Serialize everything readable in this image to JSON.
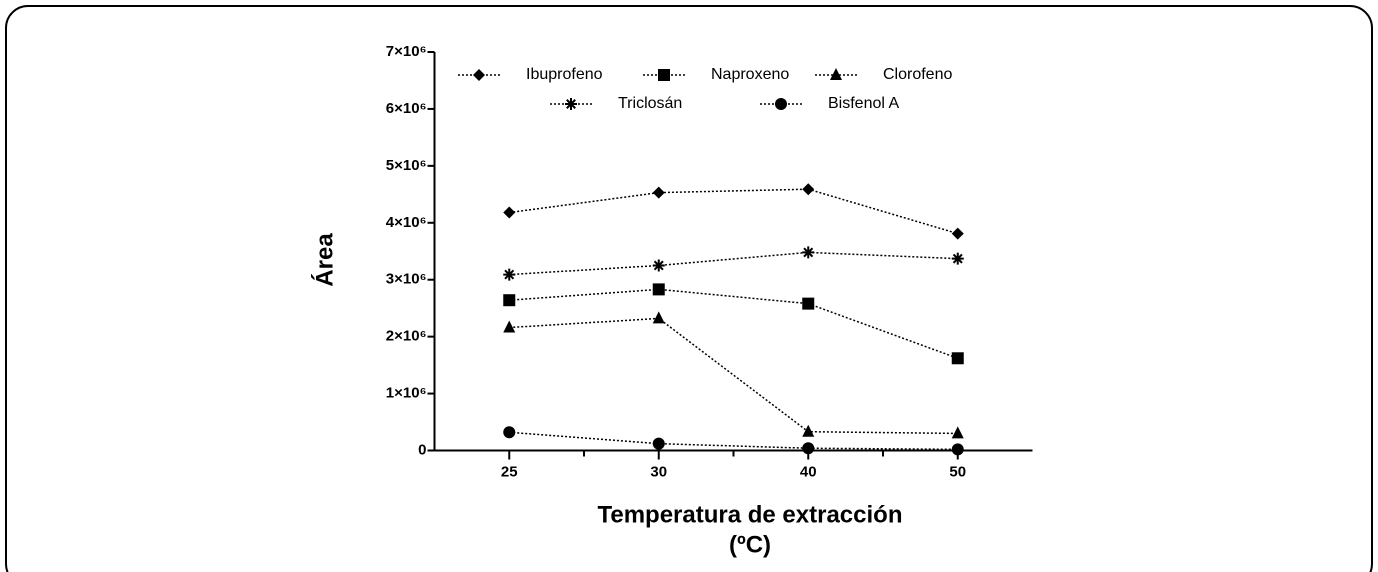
{
  "chart_data": {
    "type": "line",
    "ylabel": "Área",
    "xlabel": [
      "Temperatura de extracción",
      "(ºC)"
    ],
    "categories": [
      "25",
      "30",
      "40",
      "50"
    ],
    "ylim": [
      0,
      7000000
    ],
    "yticks": [
      0,
      {
        "value": 1000000,
        "label": "1×10⁶"
      },
      {
        "value": 2000000,
        "label": "2×10⁶"
      },
      {
        "value": 3000000,
        "label": "3×10⁶"
      },
      {
        "value": 4000000,
        "label": "4×10⁶"
      },
      {
        "value": 5000000,
        "label": "5×10⁶"
      },
      {
        "value": 6000000,
        "label": "6×10⁶"
      },
      {
        "value": 7000000,
        "label": "7×10⁶"
      }
    ],
    "series": [
      {
        "name": "Ibuprofeno",
        "color": "#000000",
        "marker": "diamond",
        "values": [
          4180000,
          4530000,
          4590000,
          3810000
        ]
      },
      {
        "name": "Naproxeno",
        "color": "#000000",
        "marker": "square",
        "values": [
          2640000,
          2830000,
          2580000,
          1620000
        ]
      },
      {
        "name": "Clorofeno",
        "color": "#000000",
        "marker": "triangle",
        "values": [
          2160000,
          2320000,
          330000,
          300000
        ]
      },
      {
        "name": "Triclosán",
        "color": "#000000",
        "marker": "asterisk",
        "values": [
          3090000,
          3250000,
          3480000,
          3370000
        ]
      },
      {
        "name": "Bisfenol A",
        "color": "#000000",
        "marker": "circle",
        "values": [
          320000,
          120000,
          40000,
          20000
        ]
      }
    ]
  }
}
